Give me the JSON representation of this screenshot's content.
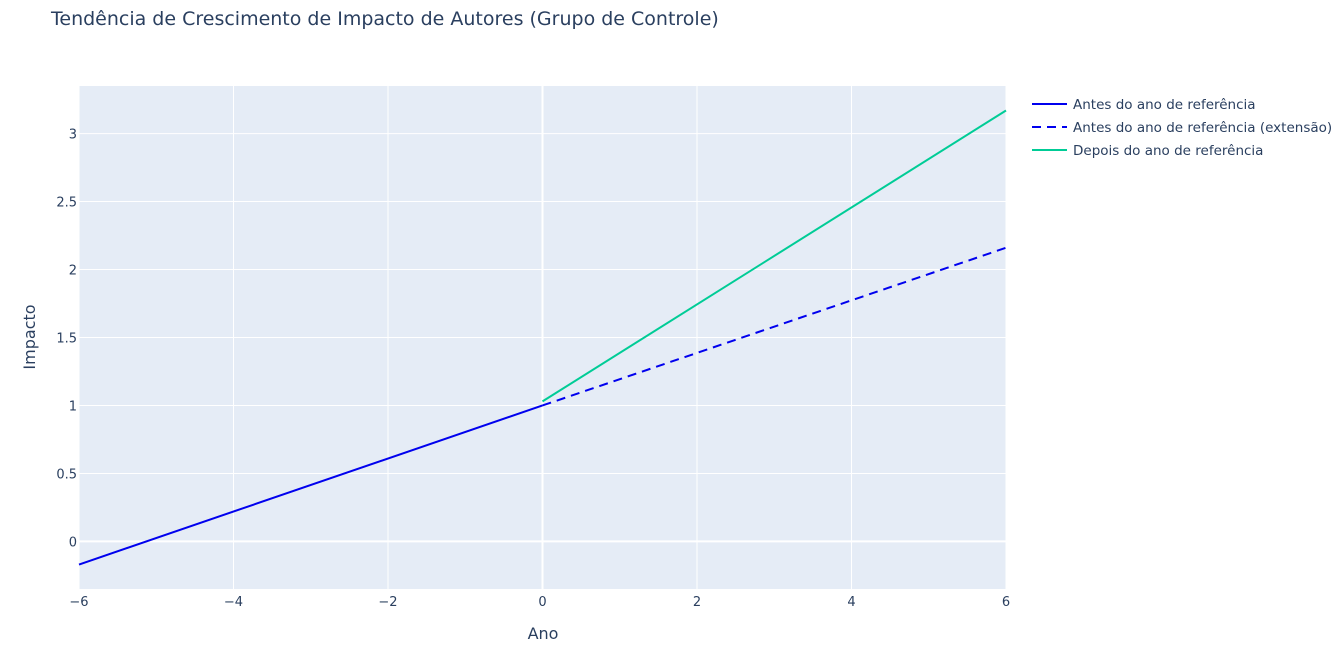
{
  "chart_data": {
    "type": "line",
    "title": "Tendência de Crescimento de Impacto de Autores (Grupo de Controle)",
    "xlabel": "Ano",
    "ylabel": "Impacto",
    "xlim": [
      -6,
      6
    ],
    "ylim": [
      -0.35,
      3.35
    ],
    "x_ticks": [
      -6,
      -4,
      -2,
      0,
      2,
      4,
      6
    ],
    "x_tick_labels": [
      "−6",
      "−4",
      "−2",
      "0",
      "2",
      "4",
      "6"
    ],
    "y_ticks": [
      0,
      0.5,
      1,
      1.5,
      2,
      2.5,
      3
    ],
    "y_tick_labels": [
      "0",
      "0.5",
      "1",
      "1.5",
      "2",
      "2.5",
      "3"
    ],
    "grid": true,
    "legend_position": "right",
    "series": [
      {
        "name": "Antes do ano de referência",
        "color": "#0000ee",
        "dash": "solid",
        "x": [
          -6,
          0
        ],
        "y": [
          -0.17,
          1.0
        ]
      },
      {
        "name": "Antes do ano de referência (extensão)",
        "color": "#0000ee",
        "dash": "dashed",
        "x": [
          0,
          6
        ],
        "y": [
          1.0,
          2.16
        ]
      },
      {
        "name": "Depois do ano de referência",
        "color": "#00cc96",
        "dash": "solid",
        "x": [
          0,
          6
        ],
        "y": [
          1.03,
          3.17
        ]
      }
    ]
  },
  "colors": {
    "plot_background": "#e5ecf6",
    "grid": "#ffffff",
    "text": "#2a3f5f"
  }
}
